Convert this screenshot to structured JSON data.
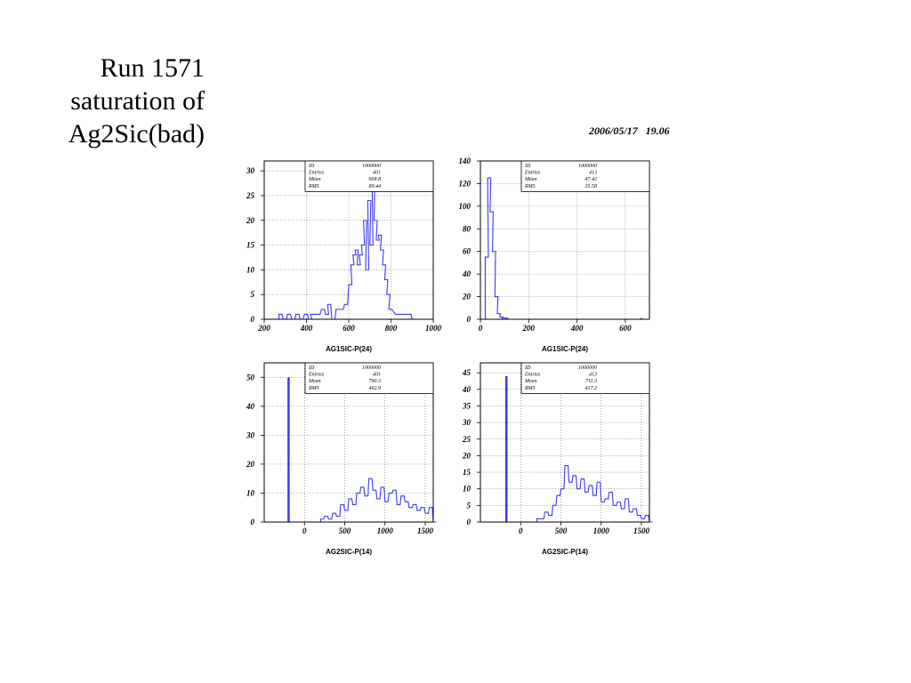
{
  "slide": {
    "title_lines": [
      "Run 1571",
      "saturation of",
      "Ag2Sic(bad)"
    ],
    "timestamp": "2006/05/17   19.06"
  },
  "colors": {
    "histogram": "#3a3aee",
    "frame": "#000000",
    "grid": "#555555"
  },
  "chart_data": [
    {
      "type": "histogram",
      "xlabel": "AG1SIC-P(24)",
      "xlim": [
        200,
        1000
      ],
      "ylim": [
        0,
        32
      ],
      "xticks": [
        200,
        400,
        600,
        800,
        1000
      ],
      "yticks": [
        0,
        5,
        10,
        15,
        20,
        25,
        30
      ],
      "grid": true,
      "stats": [
        [
          "ID",
          "1000000"
        ],
        [
          "Entries",
          "401"
        ],
        [
          "Mean",
          "668.8"
        ],
        [
          "RMS",
          "89.44"
        ]
      ],
      "x": [
        270,
        290,
        310,
        330,
        350,
        370,
        390,
        410,
        420,
        430,
        450,
        470,
        490,
        500,
        520,
        540,
        560,
        580,
        600,
        610,
        620,
        630,
        640,
        650,
        660,
        670,
        680,
        690,
        700,
        710,
        720,
        730,
        740,
        750,
        760,
        770,
        780,
        790,
        820,
        850,
        880,
        900
      ],
      "values": [
        1,
        0,
        1,
        0,
        1,
        0,
        1,
        0,
        1,
        1,
        1,
        2,
        1,
        3,
        0,
        2,
        2,
        3,
        7,
        11,
        13,
        14,
        11,
        13,
        15,
        20,
        10,
        24,
        15,
        30,
        20,
        16,
        17,
        14,
        11,
        8,
        5,
        2,
        1,
        1,
        1,
        0
      ],
      "spikes": []
    },
    {
      "type": "histogram",
      "xlabel": "AG1SIC-P(24)",
      "xlim": [
        0,
        700
      ],
      "ylim": [
        0,
        140
      ],
      "xticks": [
        0,
        200,
        400,
        600
      ],
      "yticks": [
        0,
        20,
        40,
        60,
        80,
        100,
        120,
        140
      ],
      "grid": true,
      "stats": [
        [
          "ID",
          "1000000"
        ],
        [
          "Entries",
          "413"
        ],
        [
          "Mean",
          "47.42"
        ],
        [
          "RMS",
          "35.58"
        ]
      ],
      "x": [
        20,
        30,
        40,
        50,
        60,
        70,
        80,
        90,
        100,
        110
      ],
      "values": [
        55,
        125,
        95,
        60,
        20,
        5,
        2,
        1,
        1,
        0
      ],
      "spikes": [
        [
          665,
          1
        ]
      ]
    },
    {
      "type": "histogram",
      "xlabel": "AG2SIC-P(14)",
      "xlim": [
        -500,
        1600
      ],
      "ylim": [
        0,
        55
      ],
      "xticks": [
        0,
        500,
        1000,
        1500
      ],
      "yticks": [
        0,
        10,
        20,
        30,
        40,
        50
      ],
      "grid": true,
      "stats": [
        [
          "ID",
          "1000000"
        ],
        [
          "Entries",
          "401"
        ],
        [
          "Mean",
          "790.3"
        ],
        [
          "RMS",
          "462.9"
        ]
      ],
      "x": [
        200,
        250,
        300,
        350,
        400,
        450,
        500,
        550,
        600,
        650,
        700,
        750,
        800,
        850,
        900,
        950,
        1000,
        1050,
        1100,
        1150,
        1200,
        1250,
        1300,
        1350,
        1400,
        1450,
        1500,
        1550,
        1600
      ],
      "values": [
        1,
        2,
        1,
        3,
        2,
        6,
        4,
        8,
        6,
        10,
        12,
        9,
        15,
        11,
        8,
        12,
        7,
        10,
        11,
        6,
        9,
        7,
        5,
        6,
        4,
        5,
        3,
        5,
        0
      ],
      "spikes": [
        [
          -200,
          50
        ]
      ]
    },
    {
      "type": "histogram",
      "xlabel": "AG2SIC-P(14)",
      "xlim": [
        -500,
        1600
      ],
      "ylim": [
        0,
        48
      ],
      "xticks": [
        0,
        500,
        1000,
        1500
      ],
      "yticks": [
        0,
        5,
        10,
        15,
        20,
        25,
        30,
        35,
        40,
        45
      ],
      "grid": true,
      "stats": [
        [
          "ID",
          "1000000"
        ],
        [
          "Entries",
          "413"
        ],
        [
          "Mean",
          "711.3"
        ],
        [
          "RMS",
          "417.2"
        ]
      ],
      "x": [
        200,
        250,
        300,
        350,
        400,
        450,
        500,
        550,
        600,
        650,
        700,
        750,
        800,
        850,
        900,
        950,
        1000,
        1050,
        1100,
        1150,
        1200,
        1250,
        1300,
        1350,
        1400,
        1450,
        1500,
        1550,
        1600
      ],
      "values": [
        1,
        1,
        3,
        2,
        5,
        8,
        10,
        17,
        12,
        14,
        10,
        13,
        9,
        11,
        8,
        12,
        6,
        7,
        9,
        5,
        6,
        4,
        7,
        3,
        4,
        2,
        1,
        2,
        0
      ],
      "spikes": [
        [
          -180,
          44
        ]
      ]
    }
  ]
}
